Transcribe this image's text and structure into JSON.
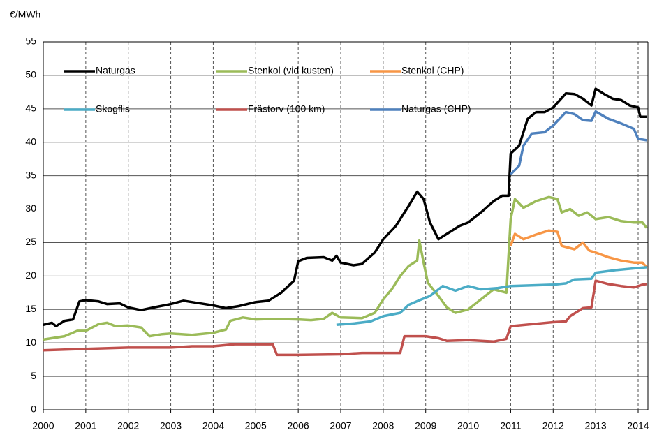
{
  "chart_data": {
    "type": "line",
    "y_label": "€/MWh",
    "xlim": [
      2000,
      2014.23
    ],
    "xticks": [
      2000,
      2001,
      2002,
      2003,
      2004,
      2005,
      2006,
      2007,
      2008,
      2009,
      2010,
      2011,
      2012,
      2013,
      2014
    ],
    "ylim": [
      0,
      55
    ],
    "yticks": [
      0,
      5,
      10,
      15,
      20,
      25,
      30,
      35,
      40,
      45,
      50,
      55
    ],
    "grid": true,
    "series": [
      {
        "name": "Naturgas",
        "color": "#000000",
        "x": [
          2000,
          2000.2,
          2000.3,
          2000.5,
          2000.7,
          2000.85,
          2001,
          2001.3,
          2001.5,
          2001.8,
          2002,
          2002.3,
          2002.6,
          2003,
          2003.3,
          2003.6,
          2004,
          2004.3,
          2004.6,
          2005,
          2005.3,
          2005.6,
          2005.9,
          2006,
          2006.2,
          2006.6,
          2006.8,
          2006.9,
          2007,
          2007.3,
          2007.5,
          2007.8,
          2008,
          2008.3,
          2008.6,
          2008.8,
          2008.95,
          2009.1,
          2009.3,
          2009.5,
          2009.8,
          2010,
          2010.3,
          2010.6,
          2010.8,
          2010.95,
          2011,
          2011.2,
          2011.4,
          2011.6,
          2011.8,
          2012,
          2012.3,
          2012.5,
          2012.7,
          2012.9,
          2013,
          2013.2,
          2013.4,
          2013.6,
          2013.8,
          2014,
          2014.05,
          2014.2
        ],
        "values": [
          12.7,
          13,
          12.5,
          13.3,
          13.5,
          16.2,
          16.4,
          16.2,
          15.8,
          15.9,
          15.3,
          14.9,
          15.3,
          15.8,
          16.3,
          16,
          15.6,
          15.2,
          15.5,
          16.1,
          16.3,
          17.5,
          19.3,
          22.2,
          22.7,
          22.8,
          22.3,
          23,
          22,
          21.6,
          21.8,
          23.5,
          25.5,
          27.5,
          30.5,
          32.6,
          31.5,
          28,
          25.5,
          26.3,
          27.5,
          28,
          29.5,
          31.2,
          32,
          32,
          38.3,
          39.5,
          43.5,
          44.5,
          44.5,
          45.2,
          47.3,
          47.2,
          46.5,
          45.5,
          48,
          47.2,
          46.5,
          46.3,
          45.5,
          45.2,
          43.8,
          43.8
        ]
      },
      {
        "name": "Stenkol (vid kusten)",
        "color": "#9bbb59",
        "x": [
          2000,
          2000.5,
          2000.8,
          2001,
          2001.3,
          2001.5,
          2001.7,
          2002,
          2002.3,
          2002.5,
          2002.8,
          2003,
          2003.5,
          2004,
          2004.3,
          2004.4,
          2004.7,
          2005,
          2005.5,
          2006,
          2006.3,
          2006.6,
          2006.8,
          2007,
          2007.5,
          2007.8,
          2008,
          2008.2,
          2008.4,
          2008.6,
          2008.8,
          2008.85,
          2008.95,
          2009.05,
          2009.3,
          2009.5,
          2009.7,
          2010,
          2010.3,
          2010.6,
          2010.9,
          2011,
          2011.1,
          2011.3,
          2011.6,
          2011.9,
          2012.1,
          2012.2,
          2012.4,
          2012.6,
          2012.8,
          2013,
          2013.3,
          2013.6,
          2013.9,
          2014.1,
          2014.2
        ],
        "values": [
          10.5,
          11,
          11.8,
          11.8,
          12.8,
          13,
          12.5,
          12.6,
          12.3,
          11,
          11.3,
          11.4,
          11.2,
          11.5,
          12,
          13.3,
          13.8,
          13.5,
          13.6,
          13.5,
          13.4,
          13.6,
          14.5,
          13.8,
          13.7,
          14.5,
          16.5,
          18,
          20,
          21.5,
          22.3,
          25.3,
          22,
          19,
          17,
          15.3,
          14.5,
          15,
          16.5,
          18,
          17.5,
          28.5,
          31.5,
          30.2,
          31.2,
          31.8,
          31.5,
          29.5,
          30,
          29,
          29.5,
          28.5,
          28.8,
          28.2,
          28,
          28,
          27.2
        ]
      },
      {
        "name": "Stenkol (CHP)",
        "color": "#f79646",
        "x": [
          2011,
          2011.1,
          2011.3,
          2011.6,
          2011.9,
          2012.1,
          2012.2,
          2012.5,
          2012.7,
          2012.85,
          2013,
          2013.3,
          2013.6,
          2013.9,
          2014.1,
          2014.2
        ],
        "values": [
          24.5,
          26.3,
          25.5,
          26.2,
          26.8,
          26.6,
          24.5,
          24,
          25,
          23.8,
          23.5,
          22.8,
          22.3,
          22,
          22,
          21.3
        ]
      },
      {
        "name": "Skogflis",
        "color": "#4bacc6",
        "x": [
          2006.9,
          2007.3,
          2007.7,
          2008,
          2008.4,
          2008.6,
          2008.9,
          2009.1,
          2009.4,
          2009.7,
          2010,
          2010.3,
          2010.7,
          2011,
          2011.5,
          2012,
          2012.3,
          2012.5,
          2012.9,
          2013,
          2013.5,
          2014,
          2014.2
        ],
        "values": [
          12.7,
          12.9,
          13.2,
          14,
          14.5,
          15.7,
          16.5,
          17,
          18.5,
          17.8,
          18.5,
          18,
          18.2,
          18.5,
          18.6,
          18.7,
          18.9,
          19.5,
          19.6,
          20.5,
          20.9,
          21.2,
          21.3
        ]
      },
      {
        "name": "Frästorv (100 km)",
        "color": "#c0504d",
        "x": [
          2000,
          2001,
          2002,
          2003,
          2003.5,
          2004,
          2004.5,
          2005.4,
          2005.5,
          2006,
          2007,
          2007.5,
          2008.4,
          2008.5,
          2009,
          2009.3,
          2009.5,
          2010,
          2010.6,
          2010.9,
          2011,
          2011.5,
          2012,
          2012.3,
          2012.4,
          2012.7,
          2012.9,
          2013,
          2013.3,
          2013.6,
          2013.9,
          2014.1,
          2014.2
        ],
        "values": [
          8.9,
          9.1,
          9.3,
          9.3,
          9.5,
          9.5,
          9.8,
          9.8,
          8.2,
          8.2,
          8.3,
          8.5,
          8.5,
          11,
          11,
          10.7,
          10.3,
          10.4,
          10.2,
          10.6,
          12.5,
          12.8,
          13.1,
          13.2,
          14,
          15.2,
          15.3,
          19.3,
          18.8,
          18.5,
          18.3,
          18.7,
          18.8
        ]
      },
      {
        "name": "Naturgas (CHP)",
        "color": "#4f81bd",
        "x": [
          2011,
          2011.2,
          2011.3,
          2011.5,
          2011.8,
          2012,
          2012.3,
          2012.5,
          2012.7,
          2012.9,
          2013,
          2013.3,
          2013.6,
          2013.9,
          2014,
          2014.2
        ],
        "values": [
          35.2,
          36.5,
          39.5,
          41.3,
          41.5,
          42.5,
          44.5,
          44.2,
          43.3,
          43.2,
          44.6,
          43.5,
          42.8,
          42,
          40.5,
          40.3
        ]
      }
    ]
  }
}
